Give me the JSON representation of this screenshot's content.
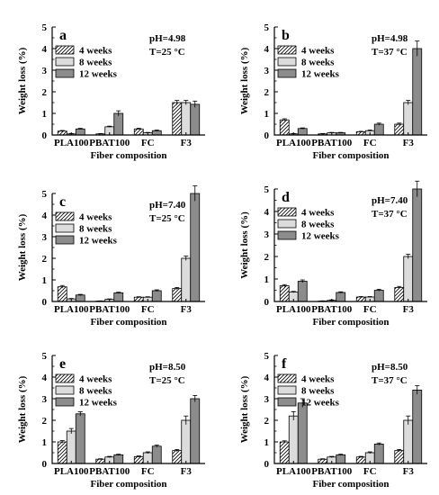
{
  "colors": {
    "series_fill": [
      "hatch",
      "#dcdcdc",
      "#8c8c8c"
    ],
    "axis": "#000000",
    "error_bar": "#000000"
  },
  "chart_data": [
    {
      "type": "bar",
      "panel_label": "a",
      "conditions": [
        "pH=4.98",
        "T=25 °C"
      ],
      "categories": [
        "PLA100",
        "PBAT100",
        "FC",
        "F3"
      ],
      "series": [
        {
          "name": "4 weeks",
          "values": [
            0.18,
            0.05,
            0.28,
            1.5
          ],
          "errors": [
            0.03,
            0.02,
            0.03,
            0.1
          ]
        },
        {
          "name": "8 weeks",
          "values": [
            0.05,
            0.38,
            0.1,
            1.5
          ],
          "errors": [
            0.02,
            0.03,
            0.02,
            0.1
          ]
        },
        {
          "name": "12 weeks",
          "values": [
            0.28,
            1.0,
            0.2,
            1.42
          ],
          "errors": [
            0.03,
            0.12,
            0.03,
            0.15
          ]
        }
      ],
      "xlabel": "Fiber composition",
      "ylabel": "Weight loss (%)",
      "ylim": [
        0,
        5
      ],
      "yticks": [
        0,
        1,
        2,
        3,
        4,
        5
      ],
      "legend": "top-left",
      "grid": false
    },
    {
      "type": "bar",
      "panel_label": "b",
      "conditions": [
        "pH=4.98",
        "T=37 °C"
      ],
      "categories": [
        "PLA100",
        "PBAT100",
        "FC",
        "F3"
      ],
      "series": [
        {
          "name": "4 weeks",
          "values": [
            0.7,
            0.05,
            0.15,
            0.5
          ],
          "errors": [
            0.05,
            0.02,
            0.02,
            0.05
          ]
        },
        {
          "name": "8 weeks",
          "values": [
            0.05,
            0.1,
            0.2,
            1.5
          ],
          "errors": [
            0.02,
            0.02,
            0.03,
            0.1
          ]
        },
        {
          "name": "12 weeks",
          "values": [
            0.3,
            0.1,
            0.5,
            4.0
          ],
          "errors": [
            0.03,
            0.02,
            0.05,
            0.35
          ]
        }
      ],
      "xlabel": "Fiber composition",
      "ylabel": "Weight loss (%)",
      "ylim": [
        0,
        5
      ],
      "yticks": [
        0,
        1,
        2,
        3,
        4,
        5
      ],
      "legend": "top-left",
      "grid": false
    },
    {
      "type": "bar",
      "panel_label": "c",
      "conditions": [
        "pH=7.40",
        "T=25 °C"
      ],
      "categories": [
        "PLA100",
        "PBAT100",
        "FC",
        "F3"
      ],
      "series": [
        {
          "name": "4 weeks",
          "values": [
            0.68,
            0.02,
            0.2,
            0.6
          ],
          "errors": [
            0.06,
            0.01,
            0.02,
            0.05
          ]
        },
        {
          "name": "8 weeks",
          "values": [
            0.12,
            0.1,
            0.2,
            2.0
          ],
          "errors": [
            0.02,
            0.02,
            0.02,
            0.1
          ]
        },
        {
          "name": "12 weeks",
          "values": [
            0.3,
            0.4,
            0.5,
            5.0
          ],
          "errors": [
            0.03,
            0.03,
            0.04,
            0.35
          ]
        }
      ],
      "xlabel": "Fiber composition",
      "ylabel": "Weight loss (%)",
      "ylim": [
        0,
        5
      ],
      "yticks": [
        0,
        1,
        2,
        3,
        4,
        5
      ],
      "legend": "top-left",
      "grid": false
    },
    {
      "type": "bar",
      "panel_label": "d",
      "conditions": [
        "pH=7.40",
        "T=37 °C"
      ],
      "categories": [
        "PLA100",
        "PBAT100",
        "FC",
        "F3"
      ],
      "series": [
        {
          "name": "4 weeks",
          "values": [
            0.7,
            0.02,
            0.2,
            0.62
          ],
          "errors": [
            0.05,
            0.01,
            0.02,
            0.05
          ]
        },
        {
          "name": "8 weeks",
          "values": [
            0.42,
            0.05,
            0.2,
            2.0
          ],
          "errors": [
            0.03,
            0.02,
            0.02,
            0.1
          ]
        },
        {
          "name": "12 weeks",
          "values": [
            0.9,
            0.4,
            0.5,
            5.0
          ],
          "errors": [
            0.06,
            0.03,
            0.04,
            0.35
          ]
        }
      ],
      "xlabel": "Fiber composition",
      "ylabel": "Weight loss (%)",
      "ylim": [
        0,
        5
      ],
      "yticks": [
        0,
        1,
        2,
        3,
        4,
        5
      ],
      "legend": "top-left",
      "grid": false
    },
    {
      "type": "bar",
      "panel_label": "e",
      "conditions": [
        "pH=8.50",
        "T=25 °C"
      ],
      "categories": [
        "PLA100",
        "PBAT100",
        "FC",
        "F3"
      ],
      "series": [
        {
          "name": "4 weeks",
          "values": [
            1.0,
            0.2,
            0.32,
            0.6
          ],
          "errors": [
            0.06,
            0.02,
            0.03,
            0.05
          ]
        },
        {
          "name": "8 weeks",
          "values": [
            1.5,
            0.3,
            0.5,
            2.0
          ],
          "errors": [
            0.12,
            0.03,
            0.04,
            0.2
          ]
        },
        {
          "name": "12 weeks",
          "values": [
            2.3,
            0.4,
            0.8,
            3.0
          ],
          "errors": [
            0.1,
            0.03,
            0.05,
            0.15
          ]
        }
      ],
      "xlabel": "Fiber composition",
      "ylabel": "Weight loss (%)",
      "ylim": [
        0,
        5
      ],
      "yticks": [
        0,
        1,
        2,
        3,
        4,
        5
      ],
      "legend": "top-left",
      "grid": false
    },
    {
      "type": "bar",
      "panel_label": "f",
      "conditions": [
        "pH=8.50",
        "T=37 °C"
      ],
      "categories": [
        "PLA100",
        "PBAT100",
        "FC",
        "F3"
      ],
      "series": [
        {
          "name": "4 weeks",
          "values": [
            1.0,
            0.2,
            0.3,
            0.6
          ],
          "errors": [
            0.05,
            0.02,
            0.03,
            0.05
          ]
        },
        {
          "name": "8 weeks",
          "values": [
            2.2,
            0.3,
            0.5,
            2.0
          ],
          "errors": [
            0.2,
            0.03,
            0.04,
            0.2
          ]
        },
        {
          "name": "12 weeks",
          "values": [
            2.8,
            0.4,
            0.9,
            3.4
          ],
          "errors": [
            0.2,
            0.03,
            0.05,
            0.2
          ]
        }
      ],
      "xlabel": "Fiber composition",
      "ylabel": "Weight loss (%)",
      "ylim": [
        0,
        5
      ],
      "yticks": [
        0,
        1,
        2,
        3,
        4,
        5
      ],
      "legend": "top-left",
      "grid": false
    }
  ]
}
